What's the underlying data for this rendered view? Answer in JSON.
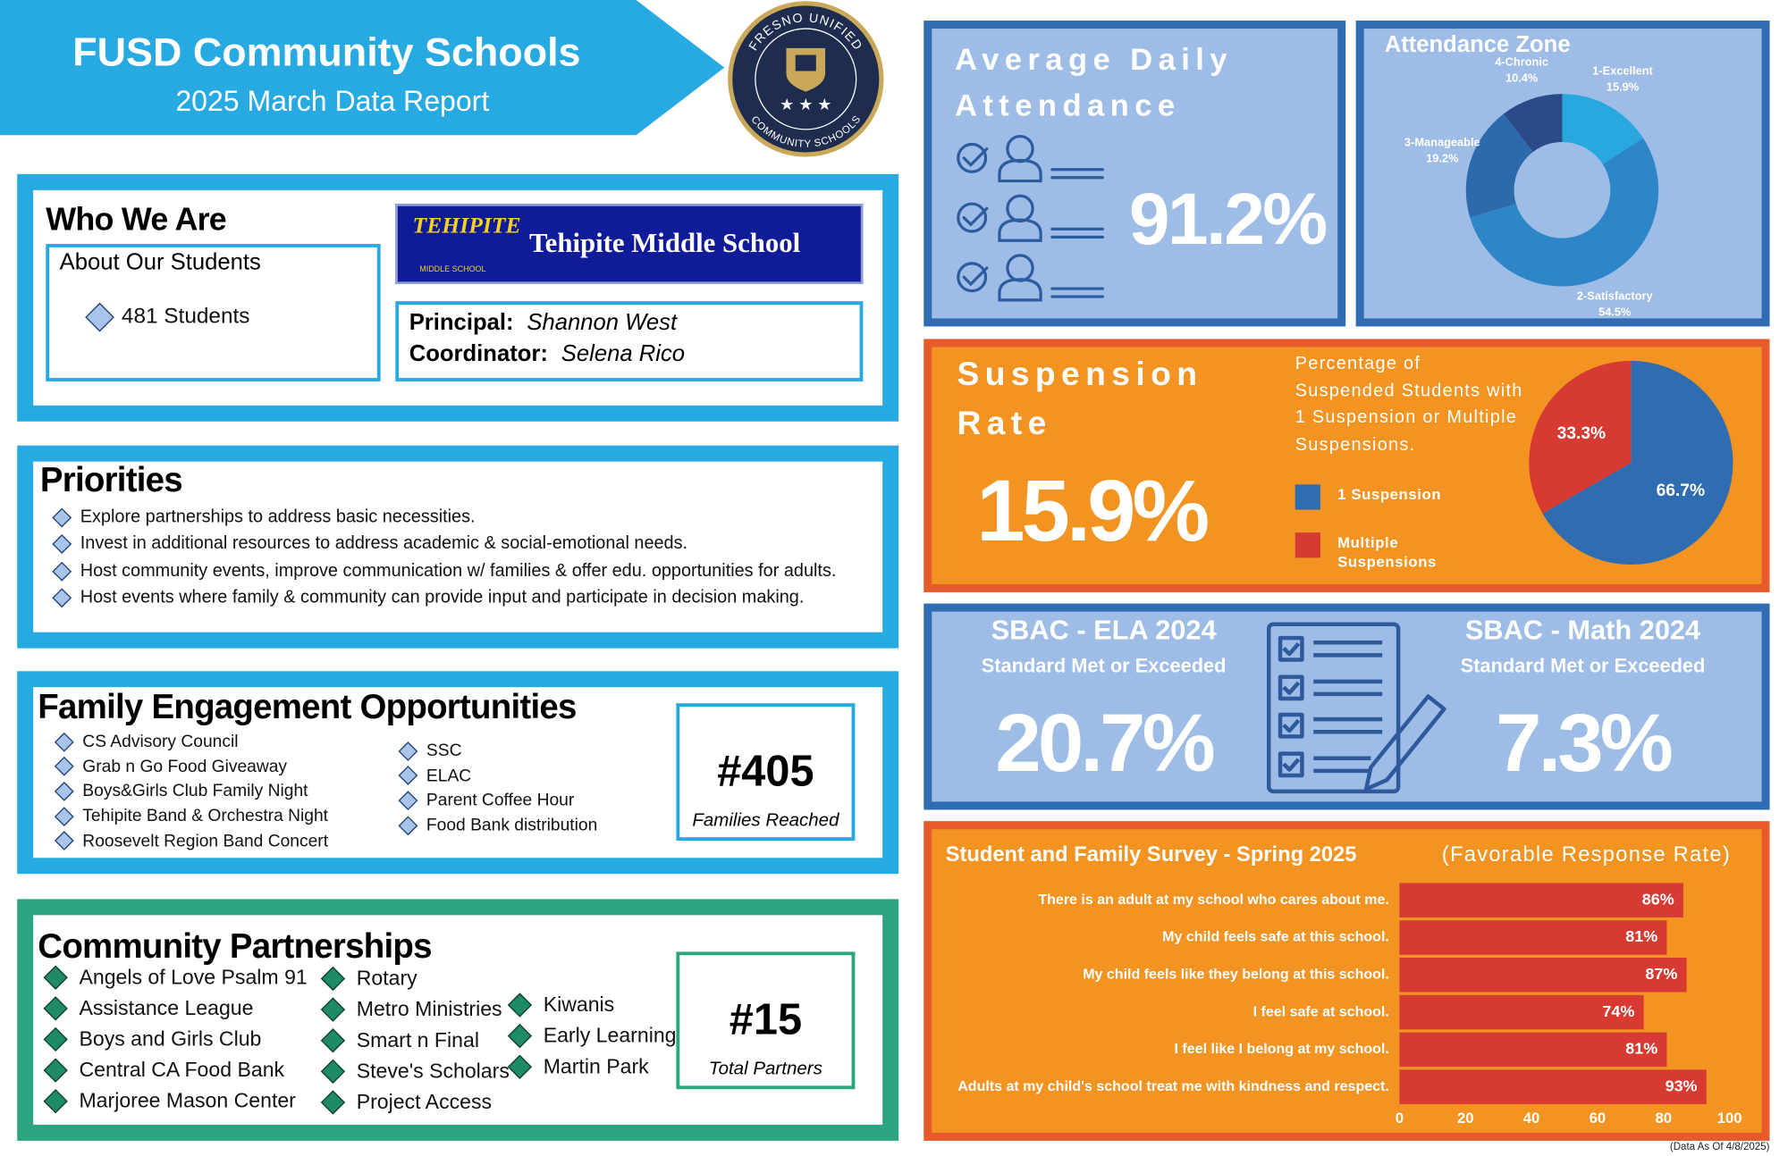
{
  "header": {
    "title": "FUSD Community Schools",
    "subtitle": "2025 March Data Report",
    "logo_top": "FRESNO UNIFIED",
    "logo_bottom": "COMMUNITY SCHOOLS"
  },
  "who_we_are": {
    "title": "Who We Are",
    "about_title": "About Our Students",
    "students": "481 Students",
    "school_logo": "TEHIPITE",
    "school_logo_sub": "MIDDLE SCHOOL",
    "school_name": "Tehipite Middle School",
    "principal_label": "Principal:",
    "principal": "Shannon West",
    "coordinator_label": "Coordinator:",
    "coordinator": "Selena Rico"
  },
  "priorities": {
    "title": "Priorities",
    "items": [
      "Explore partnerships to address basic necessities.",
      "Invest in additional resources to address academic & social-emotional needs.",
      "Host community events, improve communication w/ families & offer edu. opportunities for adults.",
      "Host events where family & community can provide input and participate in decision making."
    ]
  },
  "family_engagement": {
    "title": "Family Engagement Opportunities",
    "items": [
      "CS Advisory Council",
      "Grab n Go Food Giveaway",
      "Boys&Girls Club Family Night",
      "Tehipite Band & Orchestra Night",
      "Roosevelt Region Band Concert",
      "SSC",
      "ELAC",
      "Parent Coffee Hour",
      "Food Bank distribution"
    ],
    "count": "#405",
    "count_label": "Families Reached"
  },
  "partnerships": {
    "title": "Community Partnerships",
    "items": [
      "Angels of Love Psalm 91",
      "Assistance League",
      "Boys and Girls Club",
      "Central CA Food Bank",
      "Marjoree Mason Center",
      "Rotary",
      "Metro Ministries",
      "Smart n Final",
      "Steve's Scholars",
      "Project Access",
      "Kiwanis",
      "Early Learning",
      "Martin Park"
    ],
    "count": "#15",
    "count_label": "Total Partners"
  },
  "attendance": {
    "title": "Average Daily Attendance",
    "value": "91.2%"
  },
  "suspension": {
    "title": "Suspension Rate",
    "value": "15.9%",
    "description": "Percentage of Suspended Students with 1 Suspension or Multiple Suspensions."
  },
  "sbac": {
    "ela_title": "SBAC - ELA 2024",
    "ela_subtitle": "Standard Met or Exceeded",
    "ela_value": "20.7%",
    "math_title": "SBAC - Math 2024",
    "math_subtitle": "Standard Met or Exceeded",
    "math_value": "7.3%"
  },
  "footnote": "(Data As Of 4/8/2025)",
  "chart_data": [
    {
      "type": "donut",
      "title": "Attendance Zone",
      "categories": [
        "1-Excellent",
        "2-Satisfactory",
        "3-Manageable",
        "4-Chronic"
      ],
      "values": [
        15.9,
        54.5,
        19.2,
        10.4
      ],
      "value_labels": [
        "15.9%",
        "54.5%",
        "19.2%",
        "10.4%"
      ],
      "colors": [
        "#29a8e0",
        "#2e86c9",
        "#2c6aac",
        "#2b4a88"
      ]
    },
    {
      "type": "pie",
      "categories": [
        "1 Suspension",
        "Multiple Suspensions"
      ],
      "values": [
        66.7,
        33.3
      ],
      "value_labels": [
        "66.7%",
        "33.3%"
      ],
      "colors": [
        "#2f6db0",
        "#d63a33"
      ]
    },
    {
      "type": "bar",
      "orientation": "horizontal",
      "title": "Student and Family Survey - Spring 2025",
      "subtitle": "(Favorable Response Rate)",
      "categories": [
        "There is an adult at my school who cares about me.",
        "My child feels safe at this school.",
        "My child feels like they belong at this school.",
        "I feel safe at school.",
        "I feel like I belong at my school.",
        "Adults at my child's school treat me with kindness and respect."
      ],
      "values": [
        86,
        81,
        87,
        74,
        81,
        93
      ],
      "value_labels": [
        "86%",
        "81%",
        "87%",
        "74%",
        "81%",
        "93%"
      ],
      "color": "#d63a33",
      "xlim": [
        0,
        100
      ],
      "xticks": [
        0,
        20,
        40,
        60,
        80,
        100
      ]
    }
  ]
}
